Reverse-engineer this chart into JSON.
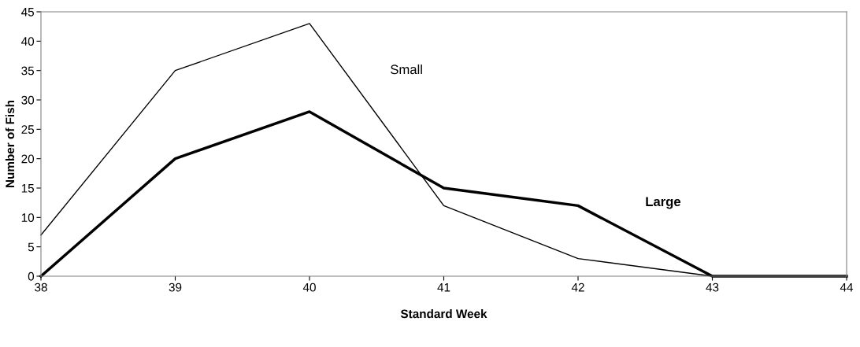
{
  "chart_data": {
    "type": "line",
    "xlabel": "Standard Week",
    "ylabel": "Number of Fish",
    "x": [
      38,
      39,
      40,
      41,
      42,
      43,
      44
    ],
    "series": [
      {
        "name": "Small",
        "color": "#000000",
        "values": [
          7,
          35,
          43,
          12,
          3,
          0,
          0
        ]
      },
      {
        "name": "Large",
        "color": "#000000",
        "values": [
          0,
          20,
          28,
          15,
          12,
          0,
          0
        ]
      }
    ],
    "xlim": [
      38,
      44
    ],
    "xticks": [
      38,
      39,
      40,
      41,
      42,
      43,
      44
    ],
    "ylim": [
      0,
      45
    ],
    "yticks": [
      0,
      5,
      10,
      15,
      20,
      25,
      30,
      35,
      40,
      45
    ],
    "grid": false,
    "legend": false,
    "marker": "none",
    "line_style": "solid"
  }
}
